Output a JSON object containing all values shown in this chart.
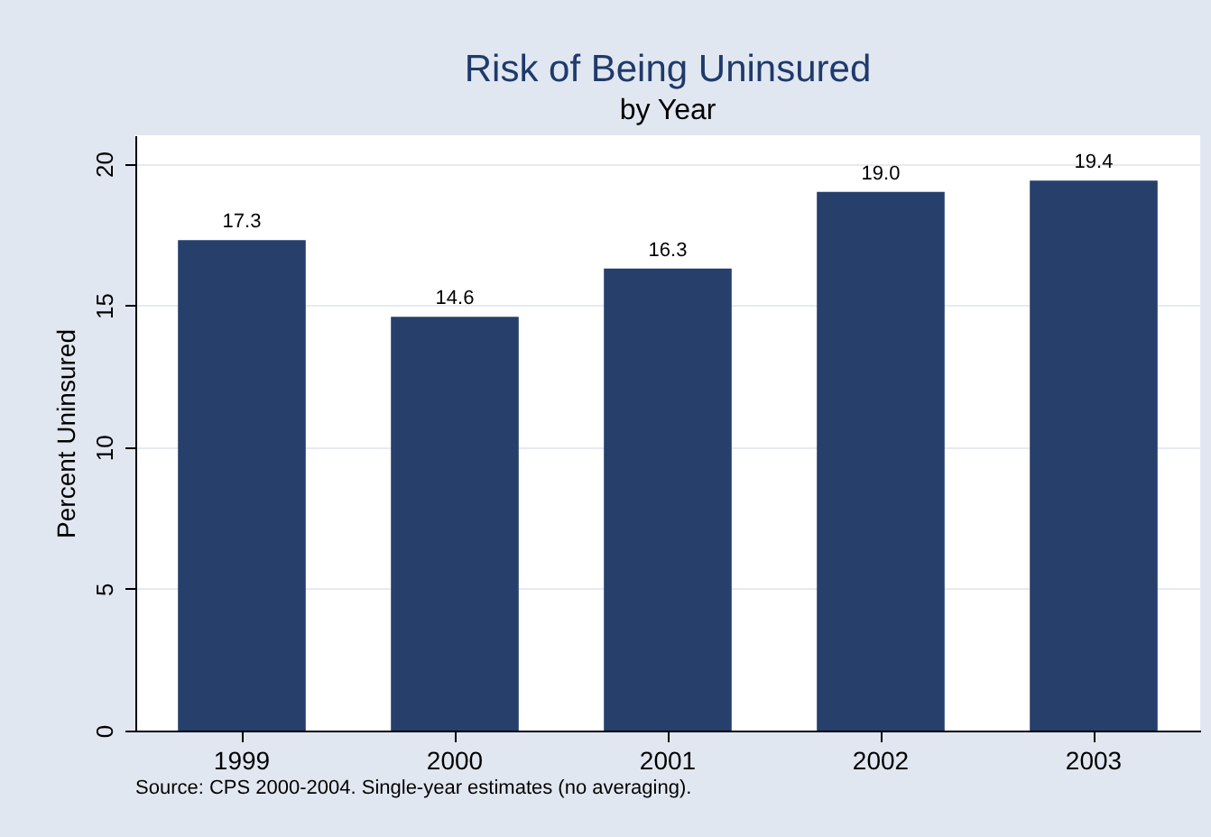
{
  "chart_data": {
    "type": "bar",
    "title": "Risk of Being Uninsured",
    "subtitle": "by Year",
    "ylabel": "Percent Uninsured",
    "categories": [
      "1999",
      "2000",
      "2001",
      "2002",
      "2003"
    ],
    "values": [
      17.3,
      14.6,
      16.3,
      19.0,
      19.4
    ],
    "value_labels": [
      "17.3",
      "14.6",
      "16.3",
      "19.0",
      "19.4"
    ],
    "color": "#263f6b",
    "ylim": [
      0,
      21
    ],
    "yticks": [
      0,
      5,
      10,
      15,
      20
    ],
    "grid": "y",
    "annotations": [
      "Source: CPS 2000-2004. Single-year estimates (no averaging)."
    ]
  }
}
